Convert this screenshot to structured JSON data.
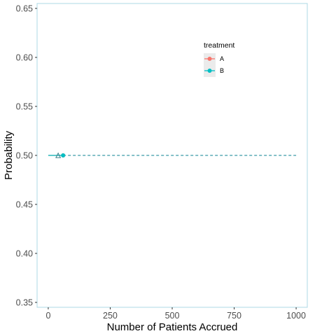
{
  "chart_data": {
    "type": "line",
    "title": "",
    "xlabel": "Number of Patients Accrued",
    "ylabel": "Probability",
    "xlim": [
      -45,
      1045
    ],
    "ylim": [
      0.345,
      0.655
    ],
    "x_ticks": [
      0,
      250,
      500,
      750,
      1000
    ],
    "x_tick_labels": [
      "0",
      "250",
      "500",
      "750",
      "1000"
    ],
    "y_ticks": [
      0.35,
      0.4,
      0.45,
      0.5,
      0.55,
      0.6,
      0.65
    ],
    "y_tick_labels": [
      "0.35",
      "0.40",
      "0.45",
      "0.50",
      "0.55",
      "0.60",
      "0.65"
    ],
    "grid": false,
    "panel_border_color": "#add8e6",
    "legend": {
      "title": "treatment",
      "position": "top-right"
    },
    "series": [
      {
        "name": "A",
        "color": "#F8766D",
        "x": [
          0,
          60
        ],
        "y": [
          0.5,
          0.5
        ]
      },
      {
        "name": "B",
        "color": "#00BFC4",
        "x": [
          0,
          60
        ],
        "y": [
          0.5,
          0.5
        ]
      }
    ],
    "overlays": [
      {
        "kind": "dashed-line",
        "color": "#3a9aa6",
        "x": [
          60,
          1000
        ],
        "y": [
          0.5,
          0.5
        ]
      },
      {
        "kind": "triangle-marker",
        "color": "#3a7f88",
        "x": 40,
        "y": 0.5
      }
    ]
  }
}
